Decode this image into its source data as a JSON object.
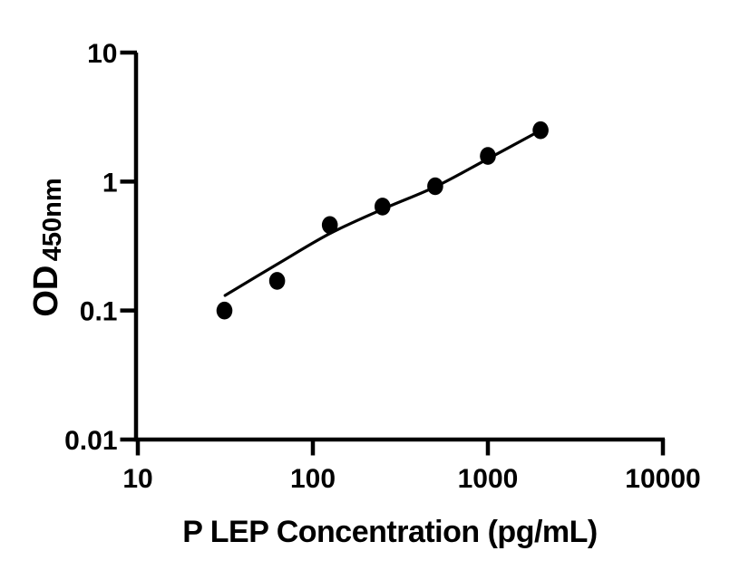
{
  "figure": {
    "background_color": "#ffffff",
    "ink_color": "#000000"
  },
  "chart_data": {
    "type": "scatter",
    "title": "",
    "xlabel": "P LEP Concentration (pg/mL)",
    "ylabel_main": "OD",
    "ylabel_sub": "450nm",
    "x_scale": "log10",
    "y_scale": "log10",
    "xlim": [
      10,
      10000
    ],
    "ylim": [
      0.01,
      10
    ],
    "grid": false,
    "legend": "none",
    "x_ticks": [
      {
        "value": 10,
        "label": "10"
      },
      {
        "value": 100,
        "label": "100"
      },
      {
        "value": 1000,
        "label": "1000"
      },
      {
        "value": 10000,
        "label": "10000"
      }
    ],
    "y_ticks": [
      {
        "value": 10,
        "label": "10"
      },
      {
        "value": 1,
        "label": "1"
      },
      {
        "value": 0.1,
        "label": "0.1"
      },
      {
        "value": 0.01,
        "label": "0.01"
      }
    ],
    "series": [
      {
        "name": "standard curve points",
        "marker": "filled-circle",
        "color": "#000000",
        "points": [
          {
            "x": 31.25,
            "y": 0.1
          },
          {
            "x": 62.5,
            "y": 0.17
          },
          {
            "x": 125,
            "y": 0.46
          },
          {
            "x": 250,
            "y": 0.64
          },
          {
            "x": 500,
            "y": 0.92
          },
          {
            "x": 1000,
            "y": 1.58
          },
          {
            "x": 2000,
            "y": 2.5
          }
        ]
      }
    ],
    "fit_curve": {
      "name": "fitted standard curve",
      "color": "#000000",
      "samples": [
        {
          "x": 31.5,
          "y": 0.131
        },
        {
          "x": 62,
          "y": 0.227
        },
        {
          "x": 124,
          "y": 0.393
        },
        {
          "x": 250,
          "y": 0.61
        },
        {
          "x": 500,
          "y": 0.91
        },
        {
          "x": 1000,
          "y": 1.5
        },
        {
          "x": 2000,
          "y": 2.49
        }
      ]
    }
  }
}
